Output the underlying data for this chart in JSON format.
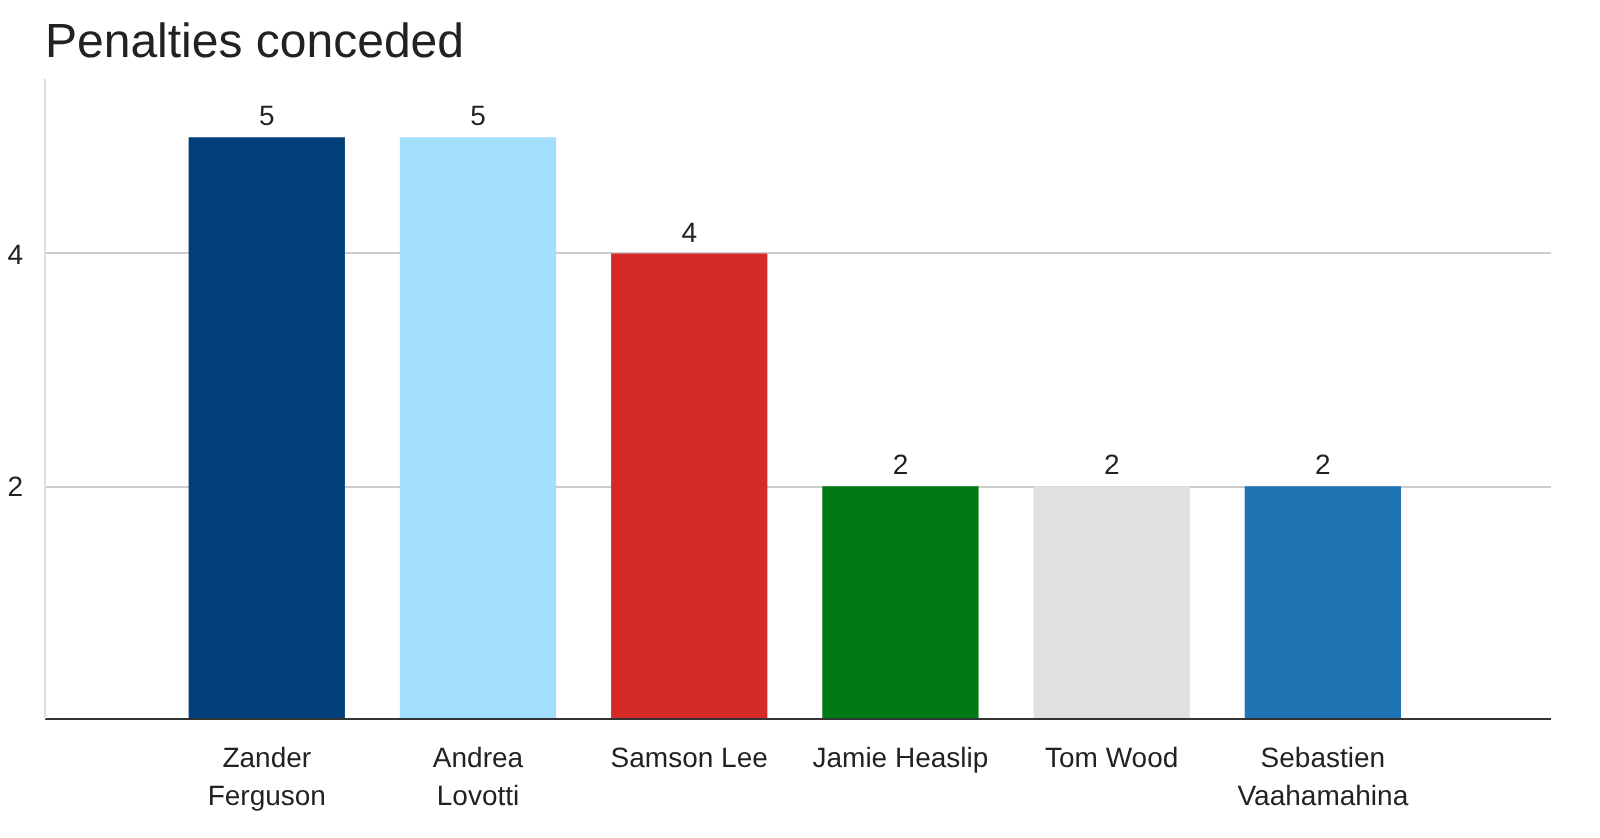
{
  "chart_data": {
    "type": "bar",
    "title": "Penalties conceded",
    "categories": [
      "Zander\nFerguson",
      "Andrea\nLovotti",
      "Samson Lee",
      "Jamie Heaslip",
      "Tom Wood",
      "Sebastien\nVaahamahina"
    ],
    "values": [
      5,
      5,
      4,
      2,
      2,
      2
    ],
    "colors": [
      "#003f7a",
      "#a3defc",
      "#d62a2a",
      "#007a12",
      "#e0e0e0",
      "#2074b4"
    ],
    "ylim": [
      0,
      5.5
    ],
    "yticks": [
      2,
      4
    ],
    "grid": "y",
    "data_labels": true
  }
}
